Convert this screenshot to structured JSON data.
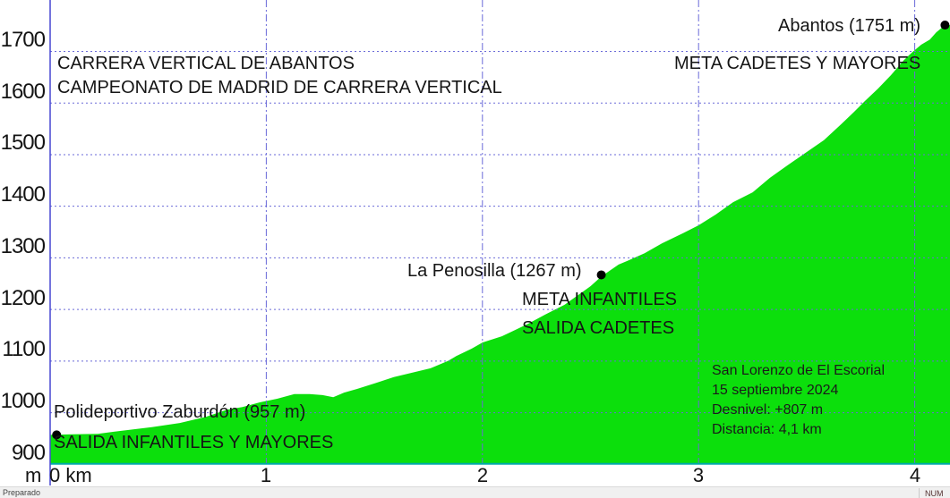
{
  "chart_data": {
    "type": "area",
    "title": "CARRERA VERTICAL DE ABANTOS",
    "subtitle": "CAMPEONATO DE MADRID DE CARRERA VERTICAL",
    "ylabel_unit": "m",
    "origin_label": "0 km",
    "ylim": [
      900,
      1800
    ],
    "xlim_km": [
      0,
      4.16
    ],
    "grid": true,
    "legend": "none",
    "y_ticks": [
      1700,
      1600,
      1500,
      1400,
      1300,
      1200,
      1100,
      1000,
      900
    ],
    "x_ticks": [
      1,
      2,
      3,
      4
    ],
    "profile_km_elev": [
      [
        0.0,
        957
      ],
      [
        0.1,
        958
      ],
      [
        0.22,
        959
      ],
      [
        0.35,
        966
      ],
      [
        0.47,
        972
      ],
      [
        0.6,
        980
      ],
      [
        0.72,
        992
      ],
      [
        0.82,
        1006
      ],
      [
        0.89,
        1011
      ],
      [
        0.97,
        1020
      ],
      [
        1.05,
        1027
      ],
      [
        1.13,
        1036
      ],
      [
        1.2,
        1036
      ],
      [
        1.26,
        1034
      ],
      [
        1.31,
        1030
      ],
      [
        1.36,
        1039
      ],
      [
        1.42,
        1046
      ],
      [
        1.51,
        1058
      ],
      [
        1.59,
        1069
      ],
      [
        1.67,
        1077
      ],
      [
        1.76,
        1086
      ],
      [
        1.84,
        1100
      ],
      [
        1.88,
        1110
      ],
      [
        1.95,
        1124
      ],
      [
        2.0,
        1136
      ],
      [
        2.09,
        1148
      ],
      [
        2.15,
        1160
      ],
      [
        2.21,
        1172
      ],
      [
        2.29,
        1190
      ],
      [
        2.38,
        1209
      ],
      [
        2.46,
        1233
      ],
      [
        2.5,
        1245
      ],
      [
        2.55,
        1264
      ],
      [
        2.63,
        1287
      ],
      [
        2.67,
        1294
      ],
      [
        2.75,
        1309
      ],
      [
        2.83,
        1328
      ],
      [
        2.92,
        1346
      ],
      [
        3.0,
        1363
      ],
      [
        3.08,
        1384
      ],
      [
        3.16,
        1408
      ],
      [
        3.25,
        1427
      ],
      [
        3.33,
        1455
      ],
      [
        3.41,
        1479
      ],
      [
        3.49,
        1502
      ],
      [
        3.58,
        1528
      ],
      [
        3.66,
        1559
      ],
      [
        3.72,
        1583
      ],
      [
        3.77,
        1604
      ],
      [
        3.83,
        1628
      ],
      [
        3.89,
        1654
      ],
      [
        3.95,
        1683
      ],
      [
        3.99,
        1699
      ],
      [
        4.03,
        1713
      ],
      [
        4.07,
        1723
      ],
      [
        4.1,
        1737
      ],
      [
        4.14,
        1751
      ]
    ],
    "waypoints": [
      {
        "label": "Polideportivo Zaburdón (957 m)",
        "note": "SALIDA INFANTILES Y MAYORES",
        "km": 0.03,
        "elev": 957
      },
      {
        "label": "La Penosilla (1267 m)",
        "note": "META INFANTILES",
        "note2": "SALIDA CADETES",
        "km": 2.55,
        "elev": 1267
      },
      {
        "label": "Abantos (1751 m)",
        "note": "META CADETES Y MAYORES",
        "km": 4.14,
        "elev": 1751
      }
    ],
    "info_box": {
      "line1": "San Lorenzo de El Escorial",
      "line2": "15 septiembre 2024",
      "line3": "Desnivel: +807 m",
      "line4": "Distancia: 4,1 km"
    },
    "colors": {
      "fill": "#0cdf0c",
      "axis_line": "#4646d2",
      "grid_line": "#6a6ad8",
      "baseline": "#00a9a9",
      "marker": "#000000",
      "info_text": "#00306e"
    }
  },
  "statusbar": {
    "left": "Preparado",
    "right": "NUM"
  }
}
